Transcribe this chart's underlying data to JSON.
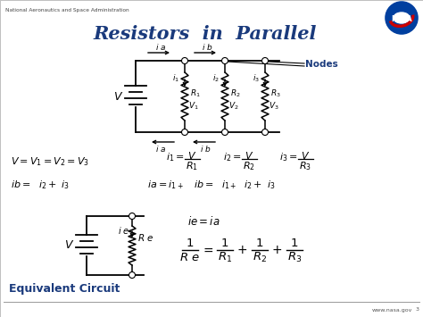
{
  "title": "Resistors  in  Parallel",
  "header": "National Aeronautics and Space Administration",
  "footer": "www.nasa.gov",
  "bg_color": "#e8e8e8",
  "slide_color": "#f5f5f5",
  "title_color": "#1a3a7c",
  "nodes_label": "Nodes",
  "equiv_label": "Equivalent Circuit",
  "figw": 4.74,
  "figh": 3.55,
  "dpi": 100
}
